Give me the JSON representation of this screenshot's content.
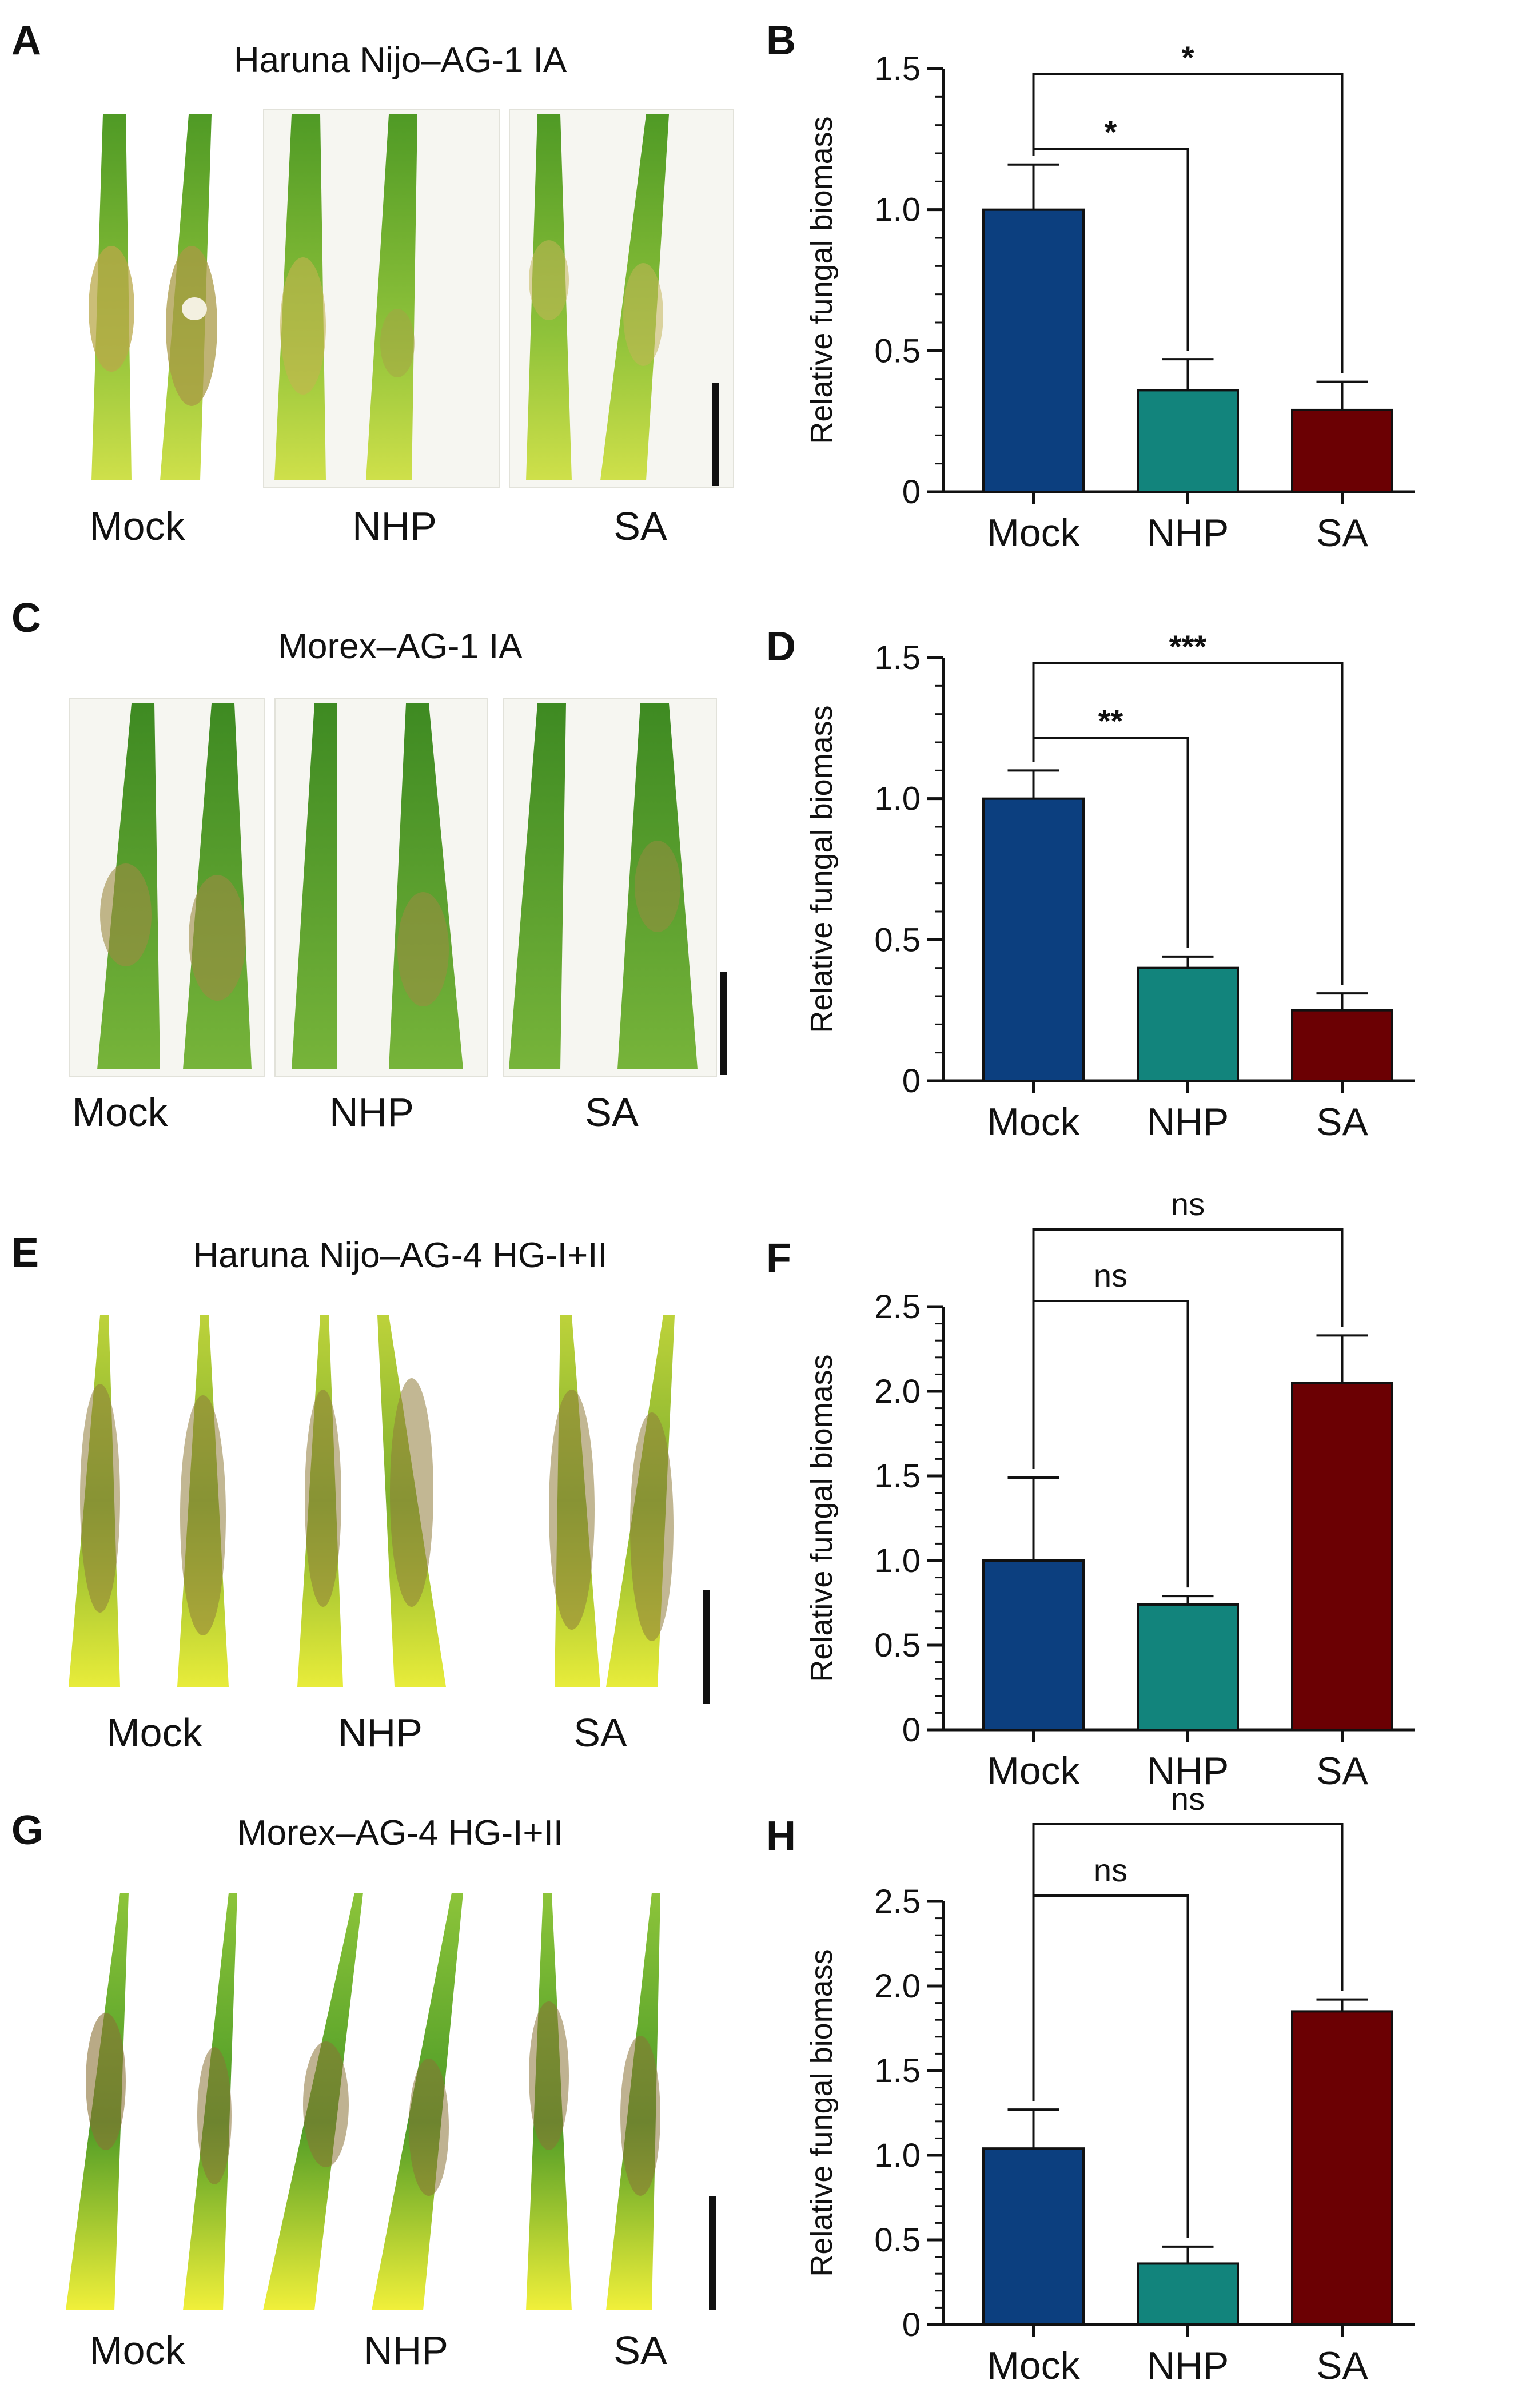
{
  "colors": {
    "mock": "#0c3f7f",
    "nhp": "#12847c",
    "sa": "#6b0003",
    "leaf_green": "#6fae2a",
    "leaf_yellow": "#d9dd3a",
    "lesion": "#7a6a3a"
  },
  "photo_panels": [
    {
      "letter": "A",
      "title": "Haruna  Nijo–AG-1 IA",
      "labels": [
        "Mock",
        "NHP",
        "SA"
      ]
    },
    {
      "letter": "C",
      "title": "Morex–AG-1 IA",
      "labels": [
        "Mock",
        "NHP",
        "SA"
      ]
    },
    {
      "letter": "E",
      "title": "Haruna  Nijo–AG-4 HG-I+II",
      "labels": [
        "Mock",
        "NHP",
        "SA"
      ]
    },
    {
      "letter": "G",
      "title": "Morex–AG-4 HG-I+II",
      "labels": [
        "Mock",
        "NHP",
        "SA"
      ]
    }
  ],
  "chart_data": [
    {
      "letter": "B",
      "type": "bar",
      "ylabel": "Relative fungal biomass",
      "categories": [
        "Mock",
        "NHP",
        "SA"
      ],
      "values": [
        1.0,
        0.36,
        0.29
      ],
      "errors": [
        0.16,
        0.11,
        0.1
      ],
      "ylim": [
        0,
        1.5
      ],
      "yticks": [
        "0",
        "0.5",
        "1.0",
        "1.5"
      ],
      "ytick_values": [
        0,
        0.5,
        1.0,
        1.5
      ],
      "annotations": [
        {
          "from": 0,
          "to": 1,
          "label": "*"
        },
        {
          "from": 0,
          "to": 2,
          "label": "*"
        }
      ]
    },
    {
      "letter": "D",
      "type": "bar",
      "ylabel": "Relative fungal biomass",
      "categories": [
        "Mock",
        "NHP",
        "SA"
      ],
      "values": [
        1.0,
        0.4,
        0.25
      ],
      "errors": [
        0.1,
        0.04,
        0.06
      ],
      "ylim": [
        0,
        1.5
      ],
      "yticks": [
        "0",
        "0.5",
        "1.0",
        "1.5"
      ],
      "ytick_values": [
        0,
        0.5,
        1.0,
        1.5
      ],
      "annotations": [
        {
          "from": 0,
          "to": 1,
          "label": "**"
        },
        {
          "from": 0,
          "to": 2,
          "label": "***"
        }
      ]
    },
    {
      "letter": "F",
      "type": "bar",
      "ylabel": "Relative fungal biomass",
      "categories": [
        "Mock",
        "NHP",
        "SA"
      ],
      "values": [
        1.0,
        0.74,
        2.05
      ],
      "errors": [
        0.49,
        0.05,
        0.28
      ],
      "ylim": [
        0,
        2.5
      ],
      "yticks": [
        "0",
        "0.5",
        "1.0",
        "1.5",
        "2.0",
        "2.5"
      ],
      "ytick_values": [
        0,
        0.5,
        1.0,
        1.5,
        2.0,
        2.5
      ],
      "annotations": [
        {
          "from": 0,
          "to": 1,
          "label": "ns"
        },
        {
          "from": 0,
          "to": 2,
          "label": "ns"
        }
      ]
    },
    {
      "letter": "H",
      "type": "bar",
      "ylabel": "Relative fungal biomass",
      "categories": [
        "Mock",
        "NHP",
        "SA"
      ],
      "values": [
        1.04,
        0.36,
        1.85
      ],
      "errors": [
        0.23,
        0.1,
        0.07
      ],
      "ylim": [
        0,
        2.5
      ],
      "yticks": [
        "0",
        "0.5",
        "1.0",
        "1.5",
        "2.0",
        "2.5"
      ],
      "ytick_values": [
        0,
        0.5,
        1.0,
        1.5,
        2.0,
        2.5
      ],
      "annotations": [
        {
          "from": 0,
          "to": 1,
          "label": "ns"
        },
        {
          "from": 0,
          "to": 2,
          "label": "ns"
        }
      ]
    }
  ]
}
